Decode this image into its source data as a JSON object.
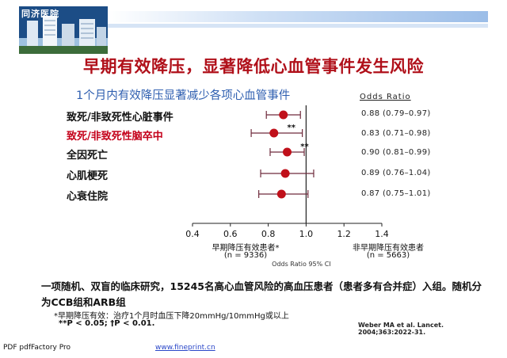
{
  "header": {
    "logo_text": "同济医院",
    "title": "早期有效降压，显著降低心血管事件发生风险",
    "subtitle": "1个月内有效降压显著减少各项心血管事件",
    "or_label": "Odds Ratio"
  },
  "chart_data": {
    "type": "forest",
    "axis_title": "Odds Ratio 95% CI",
    "xlim": [
      0.4,
      1.4
    ],
    "ticks": [
      "0.4",
      "0.6",
      "0.8",
      "1.0",
      "1.2",
      "1.4"
    ],
    "reference_line": 1.0,
    "rows": [
      {
        "label": "致死/非致死性心脏事件",
        "or": 0.88,
        "lo": 0.79,
        "hi": 0.97,
        "ci_text": "0.88 (0.79–0.97)",
        "mark": "",
        "highlight": false
      },
      {
        "label": "致死/非致死性脑卒中",
        "or": 0.83,
        "lo": 0.71,
        "hi": 0.98,
        "ci_text": "0.83 (0.71–0.98)",
        "mark": "**",
        "highlight": true
      },
      {
        "label": "全因死亡",
        "or": 0.9,
        "lo": 0.81,
        "hi": 0.99,
        "ci_text": "0.90 (0.81–0.99)",
        "mark": "**",
        "highlight": false
      },
      {
        "label": "心肌梗死",
        "or": 0.89,
        "lo": 0.76,
        "hi": 1.04,
        "ci_text": "0.89 (0.76–1.04)",
        "mark": "",
        "highlight": false
      },
      {
        "label": "心衰住院",
        "or": 0.87,
        "lo": 0.75,
        "hi": 1.01,
        "ci_text": "0.87 (0.75–1.01)",
        "mark": "",
        "highlight": false
      }
    ],
    "groups": {
      "left_label": "早期降压有效患者*",
      "left_n": "(n = 9336)",
      "right_label": "非早期降压有效患者",
      "right_n": "(n = 5663)"
    },
    "colors": {
      "point": "#c0101a",
      "ci": "#6f2b3c",
      "axis": "#222222"
    }
  },
  "notes": {
    "study": "一项随机、双盲的临床研究，15245名高心血管风险的高血压患者（患者多有合并症）入组。随机分为CCB组和ARB组",
    "footnote1": "*早期降压有效：治疗1个月时血压下降20mmHg/10mmHg或以上",
    "footnote2": "**P < 0.05; †P < 0.01.",
    "reference": "Weber MA et al. Lancet. 2004;363:2022-31."
  },
  "footer": {
    "pdf_label": "PDF   pdfFactory Pro",
    "link": "www.fineprint.cn"
  }
}
